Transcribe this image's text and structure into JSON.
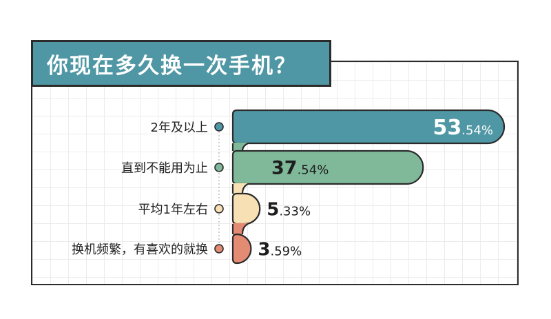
{
  "title": "你现在多久换一次手机？",
  "colors": {
    "title_bg": "#4f97a4",
    "outline": "#2b2b2b",
    "grid": "#ececec"
  },
  "chart_data": {
    "type": "bar",
    "orientation": "horizontal",
    "title": "你现在多久换一次手机？",
    "unit": "%",
    "categories": [
      "2年及以上",
      "直到不能用为止",
      "平均1年左右",
      "换机频繁，有喜欢的就换"
    ],
    "values": [
      53.54,
      37.54,
      5.33,
      3.59
    ],
    "value_labels": [
      {
        "whole": "53",
        "rest": ".54%"
      },
      {
        "whole": "37",
        "rest": ".54%"
      },
      {
        "whole": "5",
        "rest": ".33%"
      },
      {
        "whole": "3",
        "rest": ".59%"
      }
    ],
    "colors": [
      "#4f97a4",
      "#7fb99a",
      "#f7e1b4",
      "#e48b74"
    ],
    "xlim": [
      0,
      53.54
    ],
    "grid": true,
    "legend": "none"
  }
}
